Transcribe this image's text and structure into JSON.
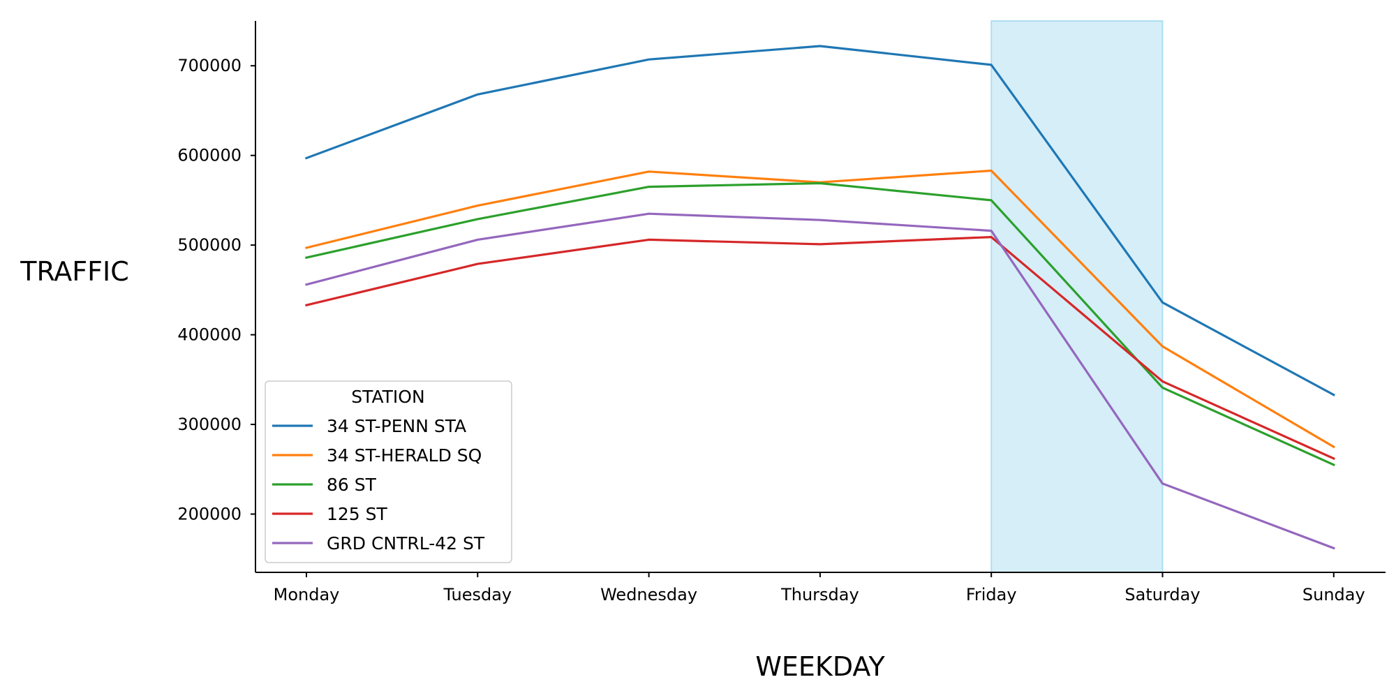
{
  "chart_data": {
    "type": "line",
    "title": "",
    "xlabel": "WEEKDAY",
    "ylabel": "TRAFFIC",
    "categories": [
      "Monday",
      "Tuesday",
      "Wednesday",
      "Thursday",
      "Friday",
      "Saturday",
      "Sunday"
    ],
    "ylim": [
      135000,
      750000
    ],
    "yticks": [
      200000,
      300000,
      400000,
      500000,
      600000,
      700000
    ],
    "grid": false,
    "highlight_span": {
      "from": "Friday",
      "to": "Saturday",
      "color": "#87ceeb"
    },
    "legend": {
      "title": "STATION",
      "placement": "lower-left"
    },
    "series": [
      {
        "name": "34 ST-PENN STA",
        "color": "#1f77b4",
        "values": [
          597000,
          668000,
          707000,
          722000,
          701000,
          436000,
          333000
        ]
      },
      {
        "name": "34 ST-HERALD SQ",
        "color": "#ff7f0e",
        "values": [
          497000,
          544000,
          582000,
          570000,
          583000,
          387000,
          275000
        ]
      },
      {
        "name": "86 ST",
        "color": "#2ca02c",
        "values": [
          486000,
          529000,
          565000,
          569000,
          550000,
          341000,
          255000
        ]
      },
      {
        "name": "125 ST",
        "color": "#d62728",
        "values": [
          433000,
          479000,
          506000,
          501000,
          509000,
          348000,
          262000
        ]
      },
      {
        "name": "GRD CNTRL-42 ST",
        "color": "#9467bd",
        "values": [
          456000,
          506000,
          535000,
          528000,
          516000,
          234000,
          162000
        ]
      }
    ]
  }
}
